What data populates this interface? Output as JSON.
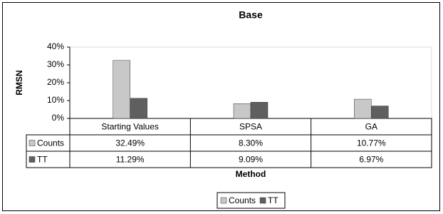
{
  "chart_data": {
    "type": "bar",
    "title": "Base",
    "y_label": "RMSN",
    "x_label": "Method",
    "categories": [
      "Starting Values",
      "SPSA",
      "GA"
    ],
    "series": [
      {
        "name": "Counts",
        "color": "#c8c8c8",
        "values": [
          32.49,
          8.3,
          10.77
        ],
        "value_labels": [
          "32.49%",
          "8.30%",
          "10.77%"
        ]
      },
      {
        "name": "TT",
        "color": "#5f5f5f",
        "values": [
          11.29,
          9.09,
          6.97
        ],
        "value_labels": [
          "11.29%",
          "9.09%",
          "6.97%"
        ]
      }
    ],
    "ylim": [
      0,
      40
    ],
    "yticks": [
      {
        "value": 0,
        "label": "0%"
      },
      {
        "value": 10,
        "label": "10%"
      },
      {
        "value": 20,
        "label": "20%"
      },
      {
        "value": 30,
        "label": "30%"
      },
      {
        "value": 40,
        "label": "40%"
      }
    ],
    "legend": "bottom"
  }
}
